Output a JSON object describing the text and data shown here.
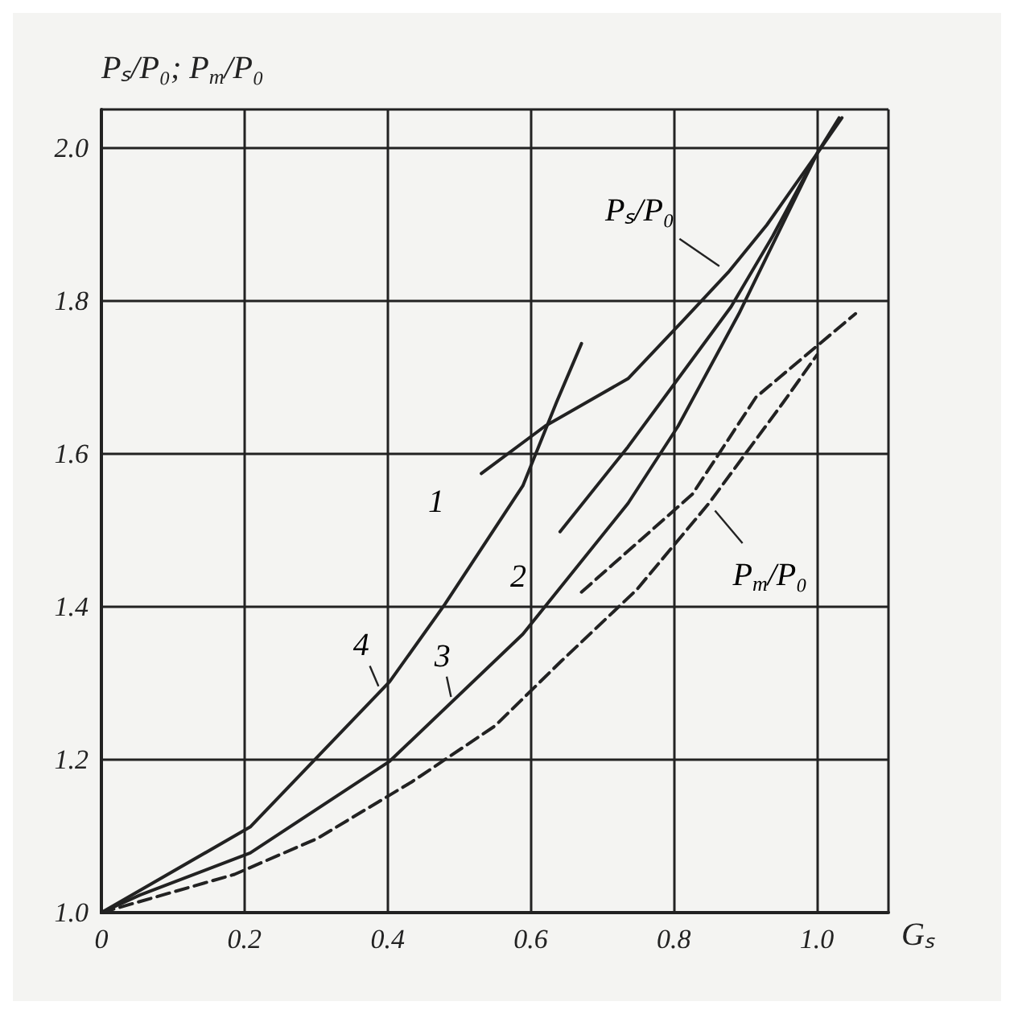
{
  "chart_data": {
    "type": "line",
    "xlabel": "Gₛ",
    "ylabel": "Pₛ/P₀; P$_{т}$/P₀",
    "xlim": [
      0,
      1.1
    ],
    "xticks": [
      0,
      0.2,
      0.4,
      0.6,
      0.8,
      {
        "value": 1,
        "label": "1.0"
      }
    ],
    "ylim": [
      1,
      2.05
    ],
    "yticks": [
      {
        "value": 1,
        "label": "1.0"
      },
      1.2,
      1.4,
      1.6,
      1.8,
      {
        "value": 2,
        "label": "2.0"
      }
    ],
    "grid": true,
    "marker": "none",
    "series": [
      {
        "color": "#222222",
        "line_style": "solid",
        "x": [
          0.531,
          0.62,
          0.736,
          0.814,
          0.876,
          0.93,
          1.0,
          1.035
        ],
        "values": [
          1.574,
          1.636,
          1.698,
          1.775,
          1.837,
          1.899,
          1.992,
          2.039
        ]
      },
      {
        "color": "#222222",
        "line_style": "solid",
        "x": [
          0.641,
          0.736,
          0.88,
          0.938,
          1.0
        ],
        "values": [
          1.498,
          1.609,
          1.792,
          1.884,
          1.992
        ]
      },
      {
        "color": "#222222",
        "line_style": "solid",
        "x": [
          0,
          0.054,
          0.208,
          0.403,
          0.589,
          0.736,
          0.806,
          0.891,
          1.0,
          1.031
        ],
        "values": [
          1.0,
          1.023,
          1.078,
          1.198,
          1.364,
          1.535,
          1.636,
          1.783,
          1.992,
          2.039
        ]
      },
      {
        "color": "#222222",
        "line_style": "solid",
        "x": [
          0,
          0.208,
          0.403,
          0.48,
          0.589,
          0.636,
          0.671
        ],
        "values": [
          1.0,
          1.112,
          1.302,
          1.403,
          1.558,
          1.667,
          1.744
        ]
      },
      {
        "color": "#222222",
        "line_style": "dashed",
        "x": [
          0,
          0.186,
          0.302,
          0.434,
          0.55,
          0.643,
          0.748,
          0.849,
          0.953,
          1.0
        ],
        "values": [
          1.0,
          1.05,
          1.097,
          1.171,
          1.244,
          1.329,
          1.422,
          1.535,
          1.667,
          1.729
        ]
      },
      {
        "color": "#222222",
        "line_style": "dashed",
        "x": [
          0.671,
          0.826,
          0.915,
          1.054
        ],
        "values": [
          1.419,
          1.547,
          1.674,
          1.783
        ]
      }
    ],
    "annotations": [
      {
        "text": "1",
        "x": 0.531,
        "y": 1.574
      },
      {
        "text": "2",
        "x": 0.641,
        "y": 1.498
      },
      {
        "text": "3",
        "x": 0.49,
        "y": 1.276
      },
      {
        "text": "4",
        "x": 0.39,
        "y": 1.29
      },
      {
        "text": "Pₛ/P₀",
        "x": 0.876,
        "y": 1.837
      },
      {
        "text": "P$_{т}$/P₀",
        "x": 0.849,
        "y": 1.535
      }
    ]
  }
}
